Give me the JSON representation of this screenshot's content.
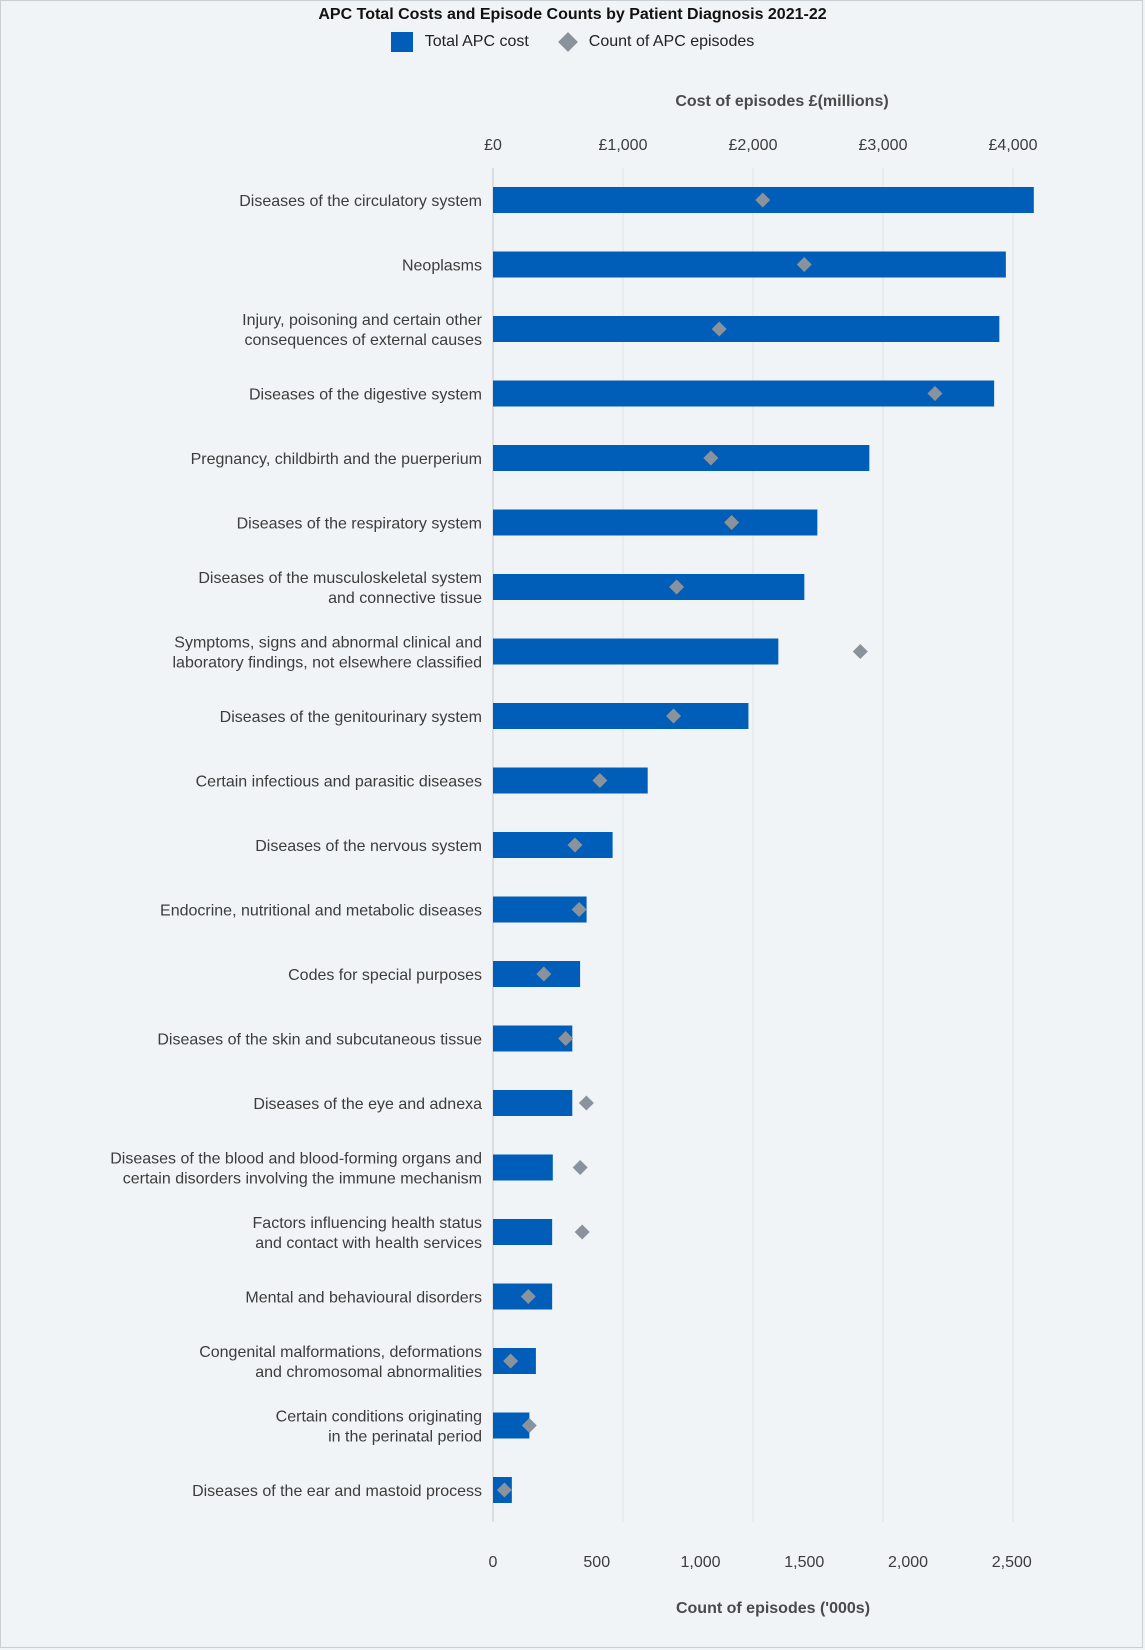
{
  "chart_data": {
    "type": "bar",
    "title": "APC Total Costs and Episode Counts by Patient Diagnosis 2021-22",
    "legend": {
      "placement": "top-center",
      "entries": [
        "Total APC cost",
        "Count of APC episodes"
      ]
    },
    "x_top": {
      "label": "Cost of episodes £(millions)",
      "ticks": [
        "£0",
        "£1,000",
        "£2,000",
        "£3,000",
        "£4,000"
      ],
      "range": [
        0,
        4000
      ]
    },
    "x_bottom": {
      "label": "Count of episodes ('000s)",
      "ticks": [
        "0",
        "500",
        "1,000",
        "1,500",
        "2,000",
        "2,500"
      ],
      "range": [
        0,
        2500
      ]
    },
    "grid": true,
    "categories": [
      [
        "Diseases of the circulatory system"
      ],
      [
        "Neoplasms"
      ],
      [
        "Injury, poisoning and certain other",
        "consequences of external causes"
      ],
      [
        "Diseases of the digestive system"
      ],
      [
        "Pregnancy, childbirth and the puerperium"
      ],
      [
        "Diseases of the respiratory system"
      ],
      [
        "Diseases of the musculoskeletal system",
        "and connective tissue"
      ],
      [
        "Symptoms, signs and abnormal clinical and",
        "laboratory findings, not elsewhere classified"
      ],
      [
        "Diseases of the genitourinary system"
      ],
      [
        "Certain infectious and parasitic diseases"
      ],
      [
        "Diseases of the nervous system"
      ],
      [
        "Endocrine, nutritional and metabolic diseases"
      ],
      [
        "Codes for special purposes"
      ],
      [
        "Diseases of the skin and subcutaneous tissue"
      ],
      [
        "Diseases of the eye and adnexa"
      ],
      [
        "Diseases of the blood and blood-forming organs and",
        "certain disorders involving the immune mechanism"
      ],
      [
        "Factors influencing health status",
        "and contact with health services"
      ],
      [
        "Mental and behavioural disorders"
      ],
      [
        "Congenital malformations, deformations",
        "and chromosomal abnormalities"
      ],
      [
        "Certain conditions originating",
        "in the perinatal period"
      ],
      [
        "Diseases of the ear and mastoid process"
      ]
    ],
    "series": [
      {
        "name": "Total APC cost",
        "axis": "top",
        "color": "#005eb8",
        "values": [
          4160,
          3945,
          3895,
          3855,
          2895,
          2495,
          2395,
          2195,
          1965,
          1190,
          920,
          720,
          670,
          610,
          610,
          460,
          455,
          455,
          330,
          280,
          145
        ]
      },
      {
        "name": "Count of APC episodes",
        "axis": "bottom",
        "color": "#8a929c",
        "values": [
          1300,
          1500,
          1090,
          2130,
          1050,
          1150,
          885,
          1770,
          870,
          515,
          395,
          415,
          245,
          350,
          450,
          420,
          430,
          170,
          85,
          175,
          55
        ]
      }
    ]
  }
}
